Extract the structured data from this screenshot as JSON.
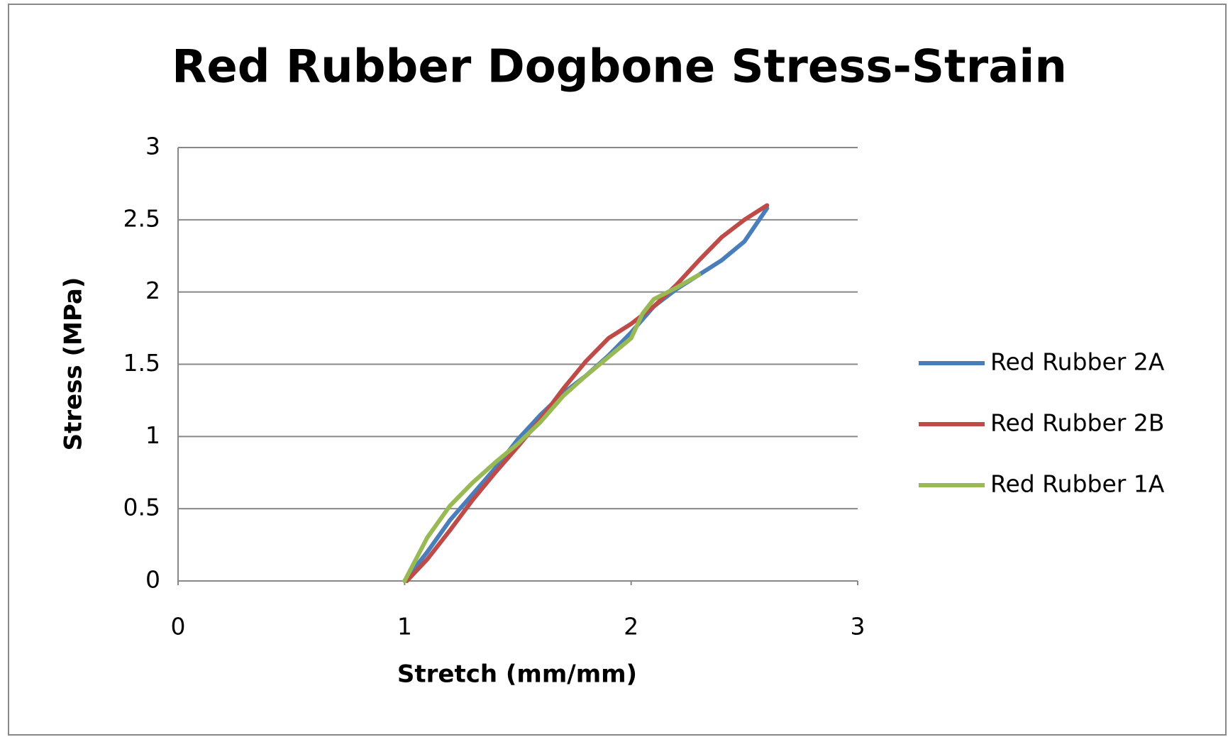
{
  "chart_data": {
    "type": "line",
    "title": "Red Rubber Dogbone Stress-Strain",
    "x_label": "Stretch (mm/mm)",
    "y_label": "Stress (MPa)",
    "xlim": [
      0,
      3
    ],
    "xticks": [
      0,
      1,
      2,
      3
    ],
    "ylim": [
      0,
      3
    ],
    "yticks": [
      0,
      0.5,
      1,
      1.5,
      2,
      2.5,
      3
    ],
    "grid": true,
    "legend": "right",
    "series": [
      {
        "name": "Red Rubber 2A",
        "color": "#4a7ebb",
        "x": [
          1,
          1.1,
          1.2,
          1.3,
          1.4,
          1.5,
          1.6,
          1.7,
          1.8,
          1.9,
          2.0,
          2.1,
          2.2,
          2.3,
          2.4,
          2.5,
          2.6
        ],
        "values": [
          0,
          0.2,
          0.42,
          0.6,
          0.78,
          0.98,
          1.15,
          1.3,
          1.42,
          1.56,
          1.72,
          1.9,
          2.02,
          2.12,
          2.22,
          2.35,
          2.58
        ]
      },
      {
        "name": "Red Rubber 2B",
        "color": "#be4b48",
        "x": [
          1.01,
          1.1,
          1.2,
          1.3,
          1.4,
          1.5,
          1.6,
          1.7,
          1.8,
          1.9,
          2.0,
          2.1,
          2.2,
          2.3,
          2.4,
          2.5,
          2.6
        ],
        "values": [
          0,
          0.15,
          0.35,
          0.56,
          0.75,
          0.93,
          1.12,
          1.33,
          1.52,
          1.68,
          1.78,
          1.9,
          2.05,
          2.22,
          2.38,
          2.5,
          2.6
        ]
      },
      {
        "name": "Red Rubber 1A",
        "color": "#98b954",
        "x": [
          1,
          1.1,
          1.2,
          1.3,
          1.4,
          1.5,
          1.6,
          1.7,
          1.8,
          1.9,
          2.0,
          2.05,
          2.1,
          2.2,
          2.3
        ],
        "values": [
          0,
          0.3,
          0.52,
          0.68,
          0.82,
          0.95,
          1.1,
          1.28,
          1.42,
          1.55,
          1.68,
          1.85,
          1.95,
          2.03,
          2.12
        ]
      }
    ]
  }
}
